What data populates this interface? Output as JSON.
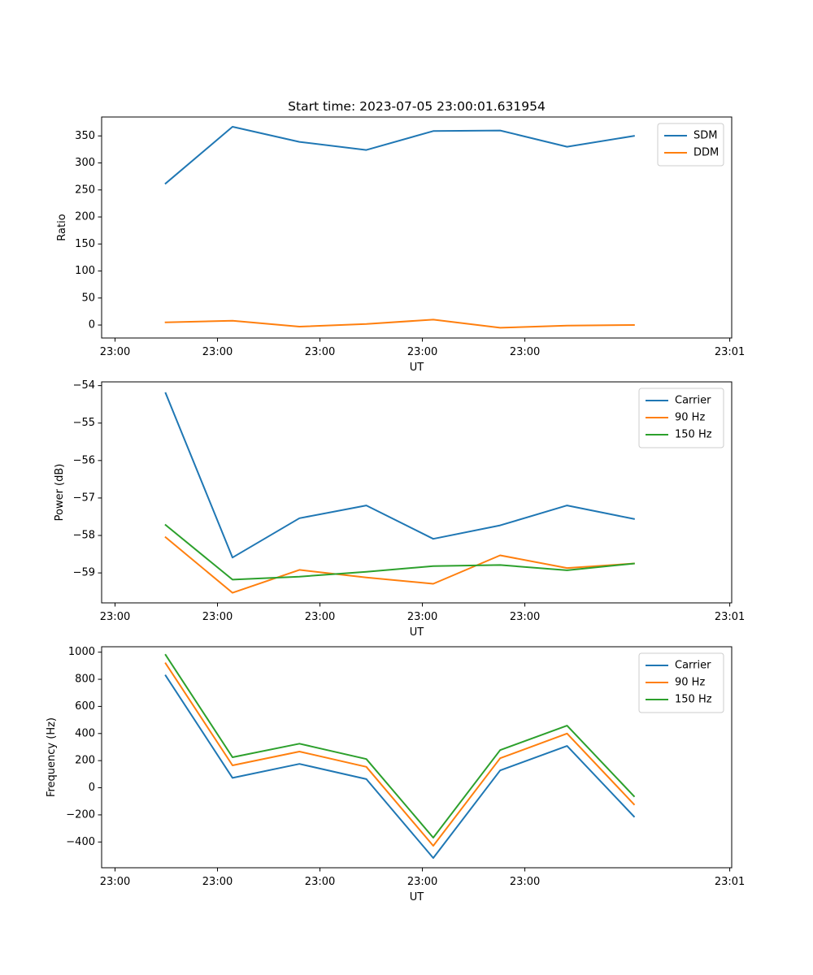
{
  "chart_data": [
    {
      "type": "line",
      "title": "Start time: 2023-07-05 23:00:01.631954",
      "xlabel": "UT",
      "ylabel": "Ratio",
      "x_tick_labels": [
        "23:00",
        "23:00",
        "23:00",
        "23:00",
        "23:00",
        "23:01"
      ],
      "y_ticks": [
        0,
        50,
        100,
        150,
        200,
        250,
        300,
        350
      ],
      "y_tick_labels": [
        "0",
        "50",
        "100",
        "150",
        "200",
        "250",
        "300",
        "350"
      ],
      "ylim": [
        -24,
        385
      ],
      "legend_position": "upper right",
      "series": [
        {
          "name": "SDM",
          "color": "#1f77b4",
          "values": [
            262,
            367,
            339,
            324,
            359,
            360,
            330,
            350
          ]
        },
        {
          "name": "DDM",
          "color": "#ff7f0e",
          "values": [
            5,
            8,
            -3,
            2,
            10,
            -5,
            -1,
            0
          ]
        }
      ]
    },
    {
      "type": "line",
      "title": "",
      "xlabel": "UT",
      "ylabel": "Power (dB)",
      "x_tick_labels": [
        "23:00",
        "23:00",
        "23:00",
        "23:00",
        "23:00",
        "23:01"
      ],
      "y_ticks": [
        -59,
        -58,
        -57,
        -56,
        -55,
        -54
      ],
      "y_tick_labels": [
        "−59",
        "−58",
        "−57",
        "−56",
        "−55",
        "−54"
      ],
      "ylim": [
        -59.8,
        -53.9
      ],
      "legend_position": "upper right",
      "series": [
        {
          "name": "Carrier",
          "color": "#1f77b4",
          "values": [
            -54.2,
            -58.59,
            -57.54,
            -57.2,
            -58.09,
            -57.73,
            -57.2,
            -57.56
          ]
        },
        {
          "name": "90 Hz",
          "color": "#ff7f0e",
          "values": [
            -58.05,
            -59.53,
            -58.92,
            -59.12,
            -59.29,
            -58.53,
            -58.87,
            -58.75
          ]
        },
        {
          "name": "150 Hz",
          "color": "#2ca02c",
          "values": [
            -57.72,
            -59.18,
            -59.1,
            -58.97,
            -58.82,
            -58.79,
            -58.93,
            -58.75
          ]
        }
      ]
    },
    {
      "type": "line",
      "title": "",
      "xlabel": "UT",
      "ylabel": "Frequency (Hz)",
      "x_tick_labels": [
        "23:00",
        "23:00",
        "23:00",
        "23:00",
        "23:00",
        "23:01"
      ],
      "y_ticks": [
        -400,
        -200,
        0,
        200,
        400,
        600,
        800,
        1000
      ],
      "y_tick_labels": [
        "−400",
        "−200",
        "0",
        "200",
        "400",
        "600",
        "800",
        "1000"
      ],
      "ylim": [
        -590,
        1040
      ],
      "legend_position": "upper right",
      "series": [
        {
          "name": "Carrier",
          "color": "#1f77b4",
          "values": [
            828,
            73,
            176,
            64,
            -518,
            128,
            308,
            -212
          ]
        },
        {
          "name": "90 Hz",
          "color": "#ff7f0e",
          "values": [
            918,
            165,
            267,
            154,
            -428,
            218,
            400,
            -122
          ]
        },
        {
          "name": "150 Hz",
          "color": "#2ca02c",
          "values": [
            980,
            225,
            325,
            212,
            -368,
            278,
            458,
            -62
          ]
        }
      ]
    }
  ]
}
